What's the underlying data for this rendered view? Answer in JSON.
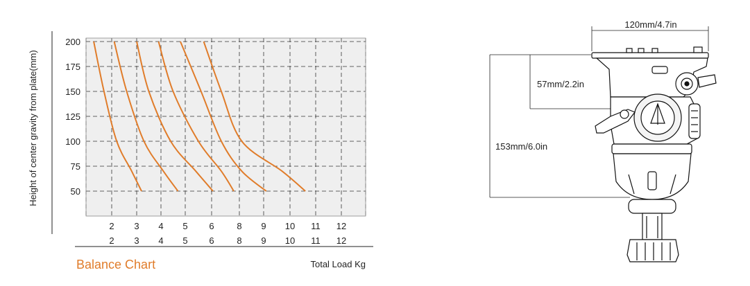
{
  "chart_data": {
    "type": "line",
    "title": "Balance Chart",
    "xlabel": "Total Load Kg",
    "ylabel": "Height of center gravity from plate(mm)",
    "yticks": [
      200,
      175,
      150,
      125,
      100,
      75,
      50
    ],
    "ylim": [
      25,
      200
    ],
    "xticks_row1": [
      "2",
      "3",
      "4",
      "5",
      "6",
      "8",
      "9",
      "10",
      "11",
      "12"
    ],
    "xticks_row2": [
      "2",
      "3",
      "4",
      "5",
      "6",
      "8",
      "9",
      "10",
      "11",
      "12"
    ],
    "grid": true,
    "series": [
      {
        "values": [
          [
            1.3,
            200
          ],
          [
            1.7,
            150
          ],
          [
            2.2,
            100
          ],
          [
            2.8,
            70
          ],
          [
            3.2,
            50
          ]
        ]
      },
      {
        "values": [
          [
            2.1,
            200
          ],
          [
            2.6,
            150
          ],
          [
            3.3,
            100
          ],
          [
            4.1,
            70
          ],
          [
            4.7,
            50
          ]
        ]
      },
      {
        "values": [
          [
            3.0,
            200
          ],
          [
            3.5,
            150
          ],
          [
            4.4,
            100
          ],
          [
            5.4,
            70
          ],
          [
            6.1,
            50
          ]
        ]
      },
      {
        "values": [
          [
            3.9,
            200
          ],
          [
            4.5,
            150
          ],
          [
            5.5,
            100
          ],
          [
            6.7,
            70
          ],
          [
            7.6,
            50
          ]
        ]
      },
      {
        "values": [
          [
            4.8,
            200
          ],
          [
            5.6,
            150
          ],
          [
            6.7,
            100
          ],
          [
            8.1,
            70
          ],
          [
            9.1,
            50
          ]
        ]
      },
      {
        "values": [
          [
            5.7,
            200
          ],
          [
            6.7,
            150
          ],
          [
            8.1,
            100
          ],
          [
            9.7,
            70
          ],
          [
            10.6,
            50
          ]
        ]
      }
    ]
  },
  "colors": {
    "curve": "#e07c2a",
    "title": "#e07c2a",
    "grid": "#333333",
    "plot_bg": "#efefef"
  },
  "dimensions": {
    "width_label": "120mm/4.7in",
    "plate_height_label": "57mm/2.2in",
    "total_height_label": "153mm/6.0in"
  }
}
